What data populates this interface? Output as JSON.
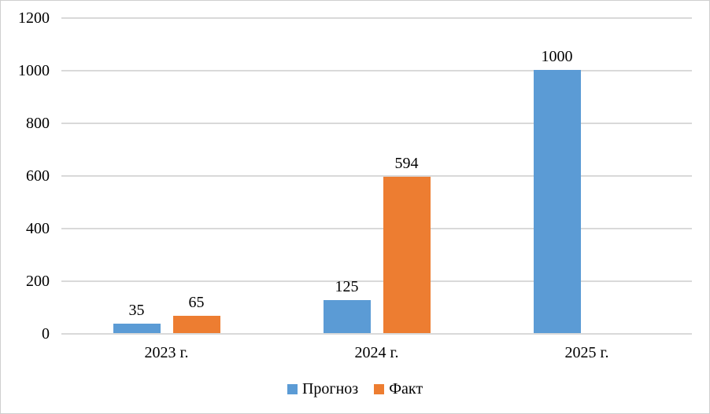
{
  "chart_data": {
    "type": "bar",
    "title": "",
    "categories": [
      "2023 г.",
      "2024 г.",
      "2025 г."
    ],
    "series": [
      {
        "name": "Прогноз",
        "color": "#5B9BD5",
        "values": [
          35,
          125,
          1000
        ]
      },
      {
        "name": "Факт",
        "color": "#ED7D31",
        "values": [
          65,
          594,
          null
        ]
      }
    ],
    "yticks": [
      0,
      200,
      400,
      600,
      800,
      1000,
      1200
    ],
    "ylim": [
      0,
      1200
    ],
    "grid": "horizontal",
    "data_labels": true,
    "legend_position": "bottom"
  },
  "styles": {
    "gridline_color": "#D9D9D9",
    "border_color": "#CFCFCF",
    "background_color": "#FFFFFF",
    "text_color": "#000000"
  }
}
